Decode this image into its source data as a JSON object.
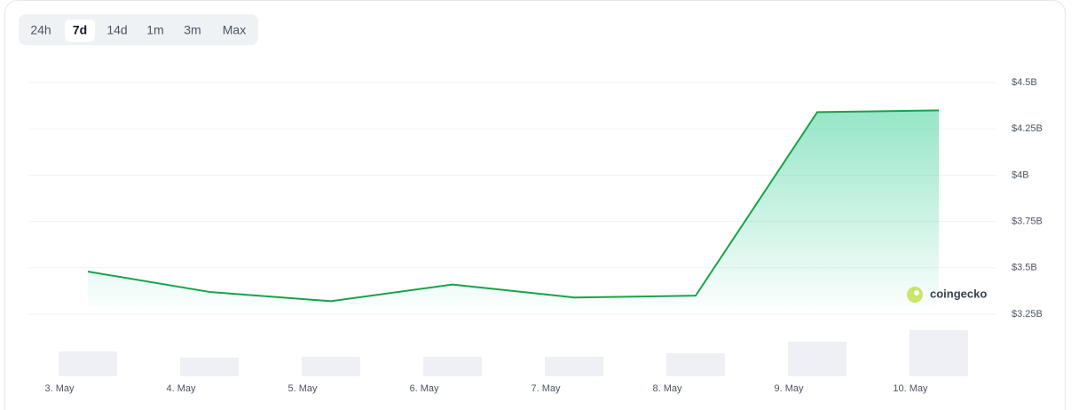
{
  "range_buttons": [
    "24h",
    "7d",
    "14d",
    "1m",
    "3m",
    "Max"
  ],
  "selected_range": "7d",
  "chart_data": {
    "type": "area",
    "categories": [
      "3. May",
      "4. May",
      "5. May",
      "6. May",
      "7. May",
      "8. May",
      "9. May",
      "10. May"
    ],
    "values": [
      3.48,
      3.37,
      3.32,
      3.41,
      3.34,
      3.35,
      4.34,
      4.35
    ],
    "color": "#16a34a",
    "volume": [
      28,
      21,
      22,
      22,
      22,
      26,
      39,
      52
    ],
    "volume_color": "#eef0f6",
    "ylim": [
      3.25,
      4.5
    ],
    "yticks": [
      {
        "value": 3.25,
        "label": "$3.25B"
      },
      {
        "value": 3.5,
        "label": "$3.5B"
      },
      {
        "value": 3.75,
        "label": "$3.75B"
      },
      {
        "value": 4,
        "label": "$4B"
      },
      {
        "value": 4.25,
        "label": "$4.25B"
      },
      {
        "value": 4.5,
        "label": "$4.5B"
      }
    ],
    "grid": true,
    "watermark": "coingecko"
  }
}
